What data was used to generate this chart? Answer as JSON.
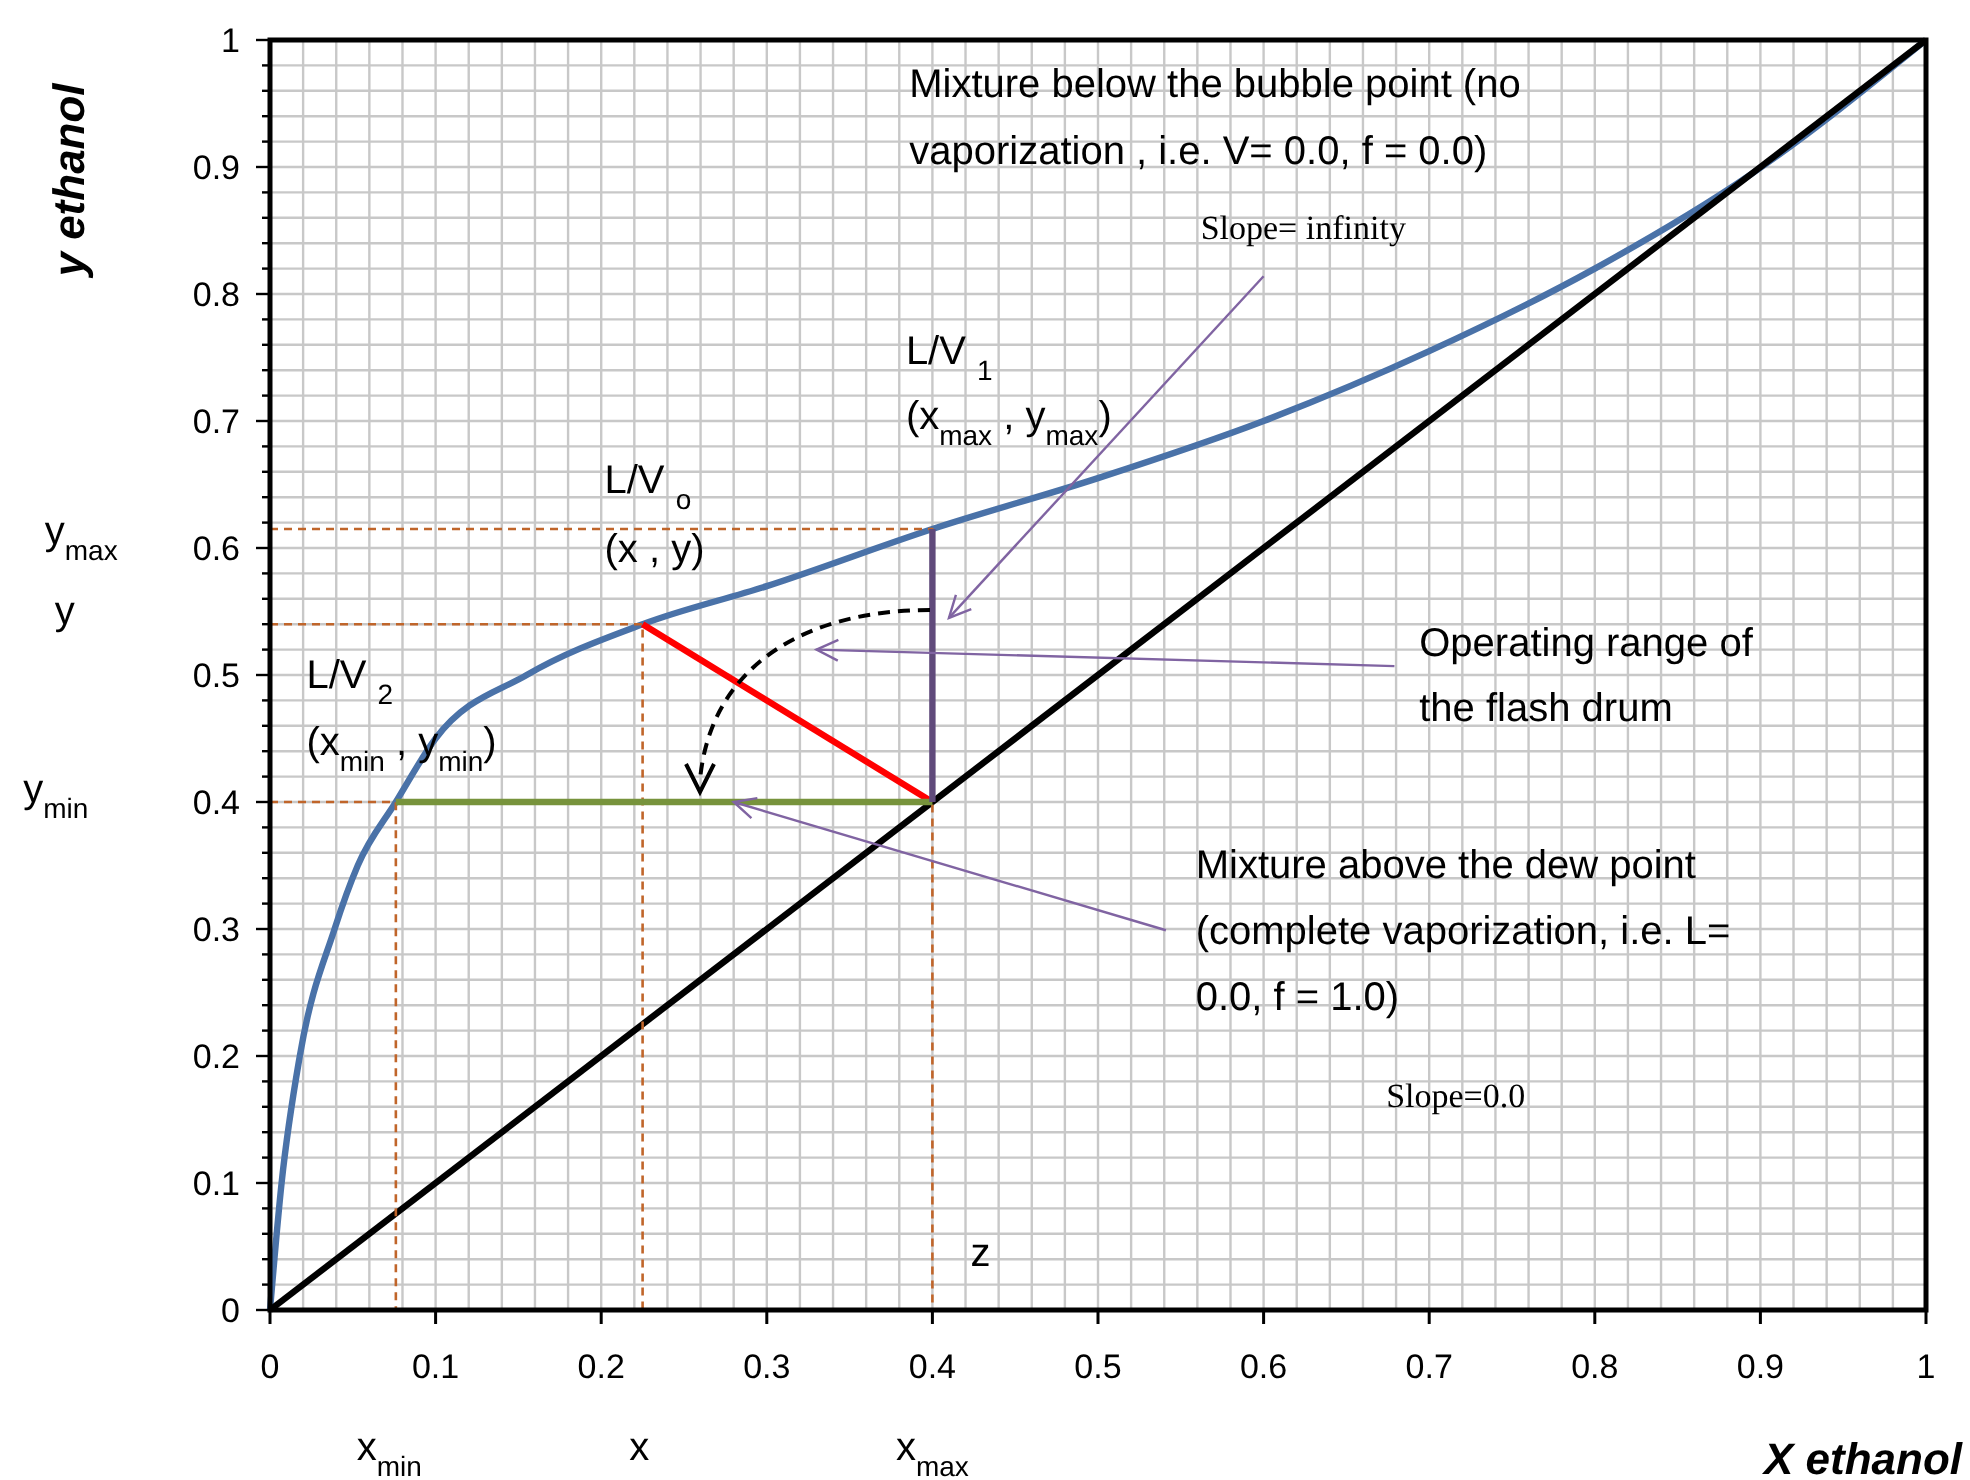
{
  "chart_data": {
    "type": "line",
    "xlabel": "X ethanol",
    "ylabel": "y ethanol",
    "xlim": [
      0,
      1
    ],
    "ylim": [
      0,
      1
    ],
    "grid": true,
    "xticks": [
      0,
      {
        "value": 0.02,
        "label": null
      },
      {
        "value": 0.04,
        "label": null
      },
      {
        "value": 0.06,
        "label": null
      },
      {
        "value": 0.08,
        "label": null
      },
      0.1,
      {
        "value": 0.12,
        "label": null
      },
      {
        "value": 0.14,
        "label": null
      },
      {
        "value": 0.16,
        "label": null
      },
      {
        "value": 0.18,
        "label": null
      },
      0.2,
      {
        "value": 0.22,
        "label": null
      },
      {
        "value": 0.24,
        "label": null
      },
      {
        "value": 0.26,
        "label": null
      },
      {
        "value": 0.28,
        "label": null
      },
      0.3,
      {
        "value": 0.32,
        "label": null
      },
      {
        "value": 0.34,
        "label": null
      },
      {
        "value": 0.36,
        "label": null
      },
      {
        "value": 0.38,
        "label": null
      },
      0.4,
      {
        "value": 0.42,
        "label": null
      },
      {
        "value": 0.44,
        "label": null
      },
      {
        "value": 0.46,
        "label": null
      },
      {
        "value": 0.48,
        "label": null
      },
      0.5,
      {
        "value": 0.52,
        "label": null
      },
      {
        "value": 0.54,
        "label": null
      },
      {
        "value": 0.56,
        "label": null
      },
      {
        "value": 0.58,
        "label": null
      },
      0.6,
      {
        "value": 0.62,
        "label": null
      },
      {
        "value": 0.64,
        "label": null
      },
      {
        "value": 0.66,
        "label": null
      },
      {
        "value": 0.68,
        "label": null
      },
      0.7,
      {
        "value": 0.72,
        "label": null
      },
      {
        "value": 0.74,
        "label": null
      },
      {
        "value": 0.76,
        "label": null
      },
      {
        "value": 0.78,
        "label": null
      },
      0.8,
      {
        "value": 0.82,
        "label": null
      },
      {
        "value": 0.84,
        "label": null
      },
      {
        "value": 0.86,
        "label": null
      },
      {
        "value": 0.88,
        "label": null
      },
      0.9,
      {
        "value": 0.92,
        "label": null
      },
      {
        "value": 0.94,
        "label": null
      },
      {
        "value": 0.96,
        "label": null
      },
      {
        "value": 0.98,
        "label": null
      },
      1
    ],
    "yticks": [
      0,
      {
        "value": 0.02,
        "label": null
      },
      {
        "value": 0.04,
        "label": null
      },
      {
        "value": 0.06,
        "label": null
      },
      {
        "value": 0.08,
        "label": null
      },
      0.1,
      {
        "value": 0.12,
        "label": null
      },
      {
        "value": 0.14,
        "label": null
      },
      {
        "value": 0.16,
        "label": null
      },
      {
        "value": 0.18,
        "label": null
      },
      0.2,
      {
        "value": 0.22,
        "label": null
      },
      {
        "value": 0.24,
        "label": null
      },
      {
        "value": 0.26,
        "label": null
      },
      {
        "value": 0.28,
        "label": null
      },
      0.3,
      {
        "value": 0.32,
        "label": null
      },
      {
        "value": 0.34,
        "label": null
      },
      {
        "value": 0.36,
        "label": null
      },
      {
        "value": 0.38,
        "label": null
      },
      0.4,
      {
        "value": 0.42,
        "label": null
      },
      {
        "value": 0.44,
        "label": null
      },
      {
        "value": 0.46,
        "label": null
      },
      {
        "value": 0.48,
        "label": null
      },
      0.5,
      {
        "value": 0.52,
        "label": null
      },
      {
        "value": 0.54,
        "label": null
      },
      {
        "value": 0.56,
        "label": null
      },
      {
        "value": 0.58,
        "label": null
      },
      0.6,
      {
        "value": 0.62,
        "label": null
      },
      {
        "value": 0.64,
        "label": null
      },
      {
        "value": 0.66,
        "label": null
      },
      {
        "value": 0.68,
        "label": null
      },
      0.7,
      {
        "value": 0.72,
        "label": null
      },
      {
        "value": 0.74,
        "label": null
      },
      {
        "value": 0.76,
        "label": null
      },
      {
        "value": 0.78,
        "label": null
      },
      0.8,
      {
        "value": 0.82,
        "label": null
      },
      {
        "value": 0.84,
        "label": null
      },
      {
        "value": 0.86,
        "label": null
      },
      {
        "value": 0.88,
        "label": null
      },
      0.9,
      {
        "value": 0.92,
        "label": null
      },
      {
        "value": 0.94,
        "label": null
      },
      {
        "value": 0.96,
        "label": null
      },
      {
        "value": 0.98,
        "label": null
      },
      1
    ],
    "series": [
      {
        "color": "#4a72a8",
        "x": [
          0,
          0.007,
          0.018,
          0.039,
          0.053,
          0.076,
          0.1,
          0.155,
          0.225,
          0.3,
          0.4,
          0.5,
          0.6,
          0.7,
          0.8,
          0.894,
          1
        ],
        "values": [
          0,
          0.1,
          0.2,
          0.3,
          0.35,
          0.4,
          0.45,
          0.5,
          0.54,
          0.57,
          0.615,
          0.655,
          0.7,
          0.755,
          0.82,
          0.894,
          1
        ]
      },
      {
        "color": "#000000",
        "x": [
          0,
          1
        ],
        "values": [
          0,
          1
        ]
      },
      {
        "color": "#c0652a",
        "line_style": "dashed",
        "x": [
          0,
          0.4,
          0.4
        ],
        "values": [
          0.615,
          0.615,
          0
        ]
      },
      {
        "color": "#c0652a",
        "line_style": "dashed",
        "x": [
          0,
          0.225,
          0.225
        ],
        "values": [
          0.54,
          0.54,
          0
        ]
      },
      {
        "color": "#c0652a",
        "line_style": "dashed",
        "x": [
          0,
          0.076,
          0.076
        ],
        "values": [
          0.4,
          0.4,
          0
        ]
      },
      {
        "color": "#ff0000",
        "x": [
          0.225,
          0.4
        ],
        "values": [
          0.54,
          0.4
        ]
      },
      {
        "color": "#77933c",
        "x": [
          0.076,
          0.4
        ],
        "values": [
          0.4,
          0.4
        ]
      },
      {
        "color": "#604a7b",
        "x": [
          0.4,
          0.4
        ],
        "values": [
          0.4,
          0.615
        ]
      }
    ],
    "annotations": [
      "Mixture below the bubble point (no",
      "vaporization , i.e. V= 0.0, f = 0.0)",
      "Slope= infinity",
      "L/V $_{1}$",
      "(x$_{max}$ , y$_{max}$)",
      "L/V $_{o}$",
      "(x , y)",
      "L/V $_{2}$",
      "(x$_{min}$ , y$_{min}$)",
      "Operating range of",
      "the flash drum",
      {
        "text": "Mixture above the dew point",
        "x": 0.28,
        "y": 0.4
      },
      "(complete vaporization, i.e. L=",
      "0.0, f = 1.0)",
      "Slope=0.0",
      "z",
      "y$_{max}$",
      "y",
      "y$_{min}$",
      "x$_{min}$",
      "x",
      "x$_{max}$"
    ]
  }
}
